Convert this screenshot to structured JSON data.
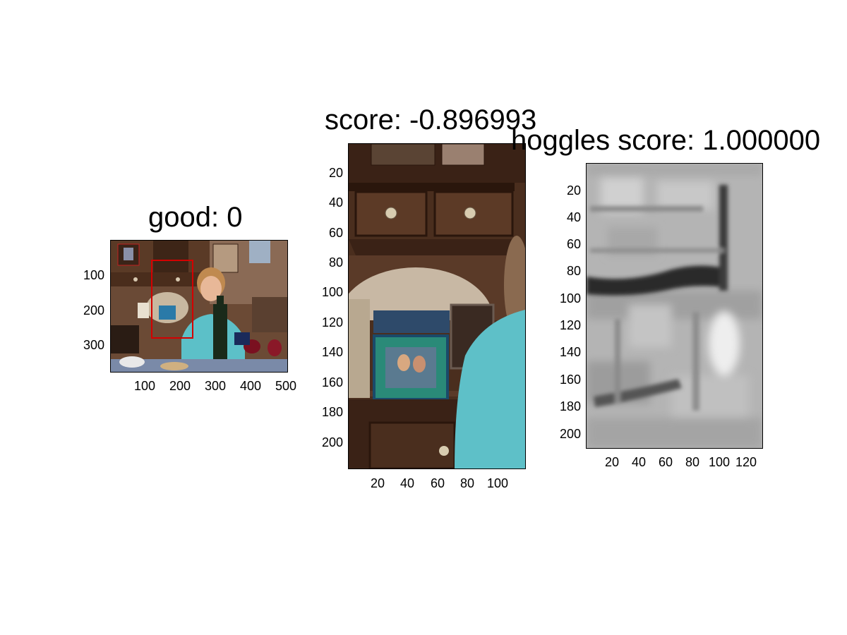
{
  "chart_data": [
    {
      "type": "image",
      "title": "good: 0",
      "x_ticks": [
        "100",
        "200",
        "300",
        "400",
        "500"
      ],
      "y_ticks": [
        "100",
        "200",
        "300"
      ],
      "xlim": [
        0,
        500
      ],
      "ylim": [
        0,
        375
      ]
    },
    {
      "type": "image",
      "title": "score: -0.896993",
      "x_ticks": [
        "20",
        "40",
        "60",
        "80",
        "100"
      ],
      "y_ticks": [
        "20",
        "40",
        "60",
        "80",
        "100",
        "120",
        "140",
        "160",
        "180",
        "200"
      ],
      "xlim": [
        0,
        118
      ],
      "ylim": [
        0,
        218
      ]
    },
    {
      "type": "heatmap",
      "title": "hoggles score: 1.000000",
      "x_ticks": [
        "20",
        "40",
        "60",
        "80",
        "100",
        "120"
      ],
      "y_ticks": [
        "20",
        "40",
        "60",
        "80",
        "100",
        "120",
        "140",
        "160",
        "180",
        "200"
      ],
      "xlim": [
        0,
        131
      ],
      "ylim": [
        0,
        212
      ],
      "colormap": "gray"
    }
  ],
  "colors": {
    "box": "#d40000",
    "background": "#ffffff"
  }
}
